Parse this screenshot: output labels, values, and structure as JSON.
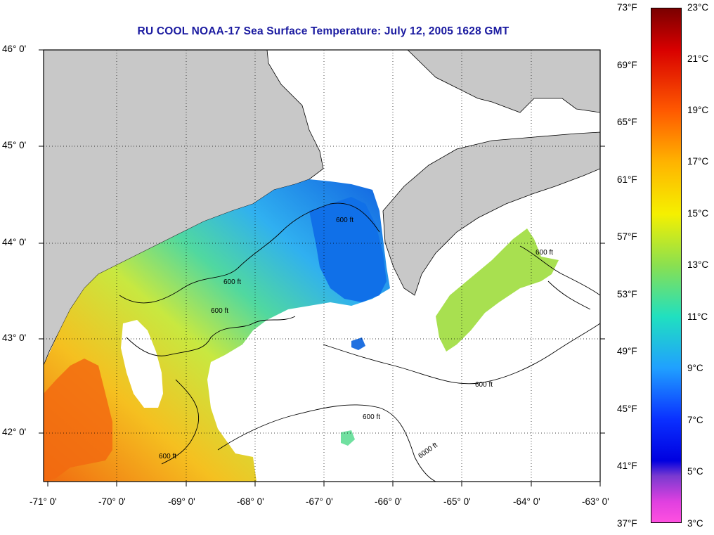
{
  "title": "RU COOL  NOAA-17  Sea Surface Temperature:  July 12, 2005 1628 GMT",
  "lat_labels": [
    "46° 0'",
    "45° 0'",
    "44° 0'",
    "43° 0'",
    "42° 0'"
  ],
  "lon_labels": [
    "-71° 0'",
    "-70° 0'",
    "-69° 0'",
    "-68° 0'",
    "-67° 0'",
    "-66° 0'",
    "-65° 0'",
    "-64° 0'",
    "-63° 0'"
  ],
  "colorbar": {
    "fahrenheit": [
      "73°F",
      "69°F",
      "65°F",
      "61°F",
      "57°F",
      "53°F",
      "49°F",
      "45°F",
      "41°F",
      "37°F"
    ],
    "celsius": [
      "23°C",
      "21°C",
      "19°C",
      "17°C",
      "15°C",
      "13°C",
      "11°C",
      "9°C",
      "7°C",
      "5°C",
      "3°C"
    ]
  },
  "contour_label": "600 ft",
  "contour_label_deep": "6000 ft",
  "colors": {
    "land": "#c8c8c8",
    "water_nodata": "#ffffff",
    "title": "#1a1aa0"
  }
}
